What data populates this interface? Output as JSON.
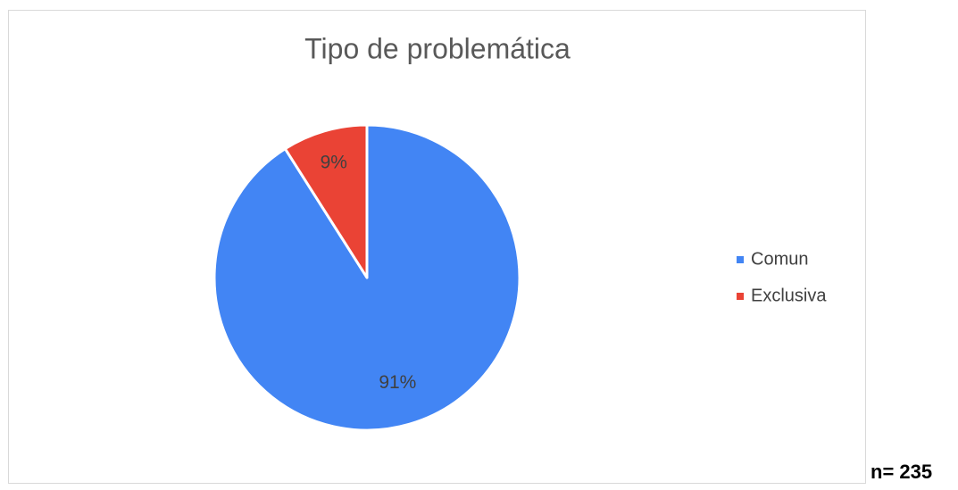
{
  "chart_data": {
    "type": "pie",
    "title": "Tipo de problemática",
    "categories": [
      "Comun",
      "Exclusiva"
    ],
    "values": [
      91,
      9
    ],
    "value_labels": [
      "91%",
      "9%"
    ],
    "colors": [
      "#4285f4",
      "#ea4335"
    ],
    "legend": "right",
    "annotation": "n= 235"
  }
}
